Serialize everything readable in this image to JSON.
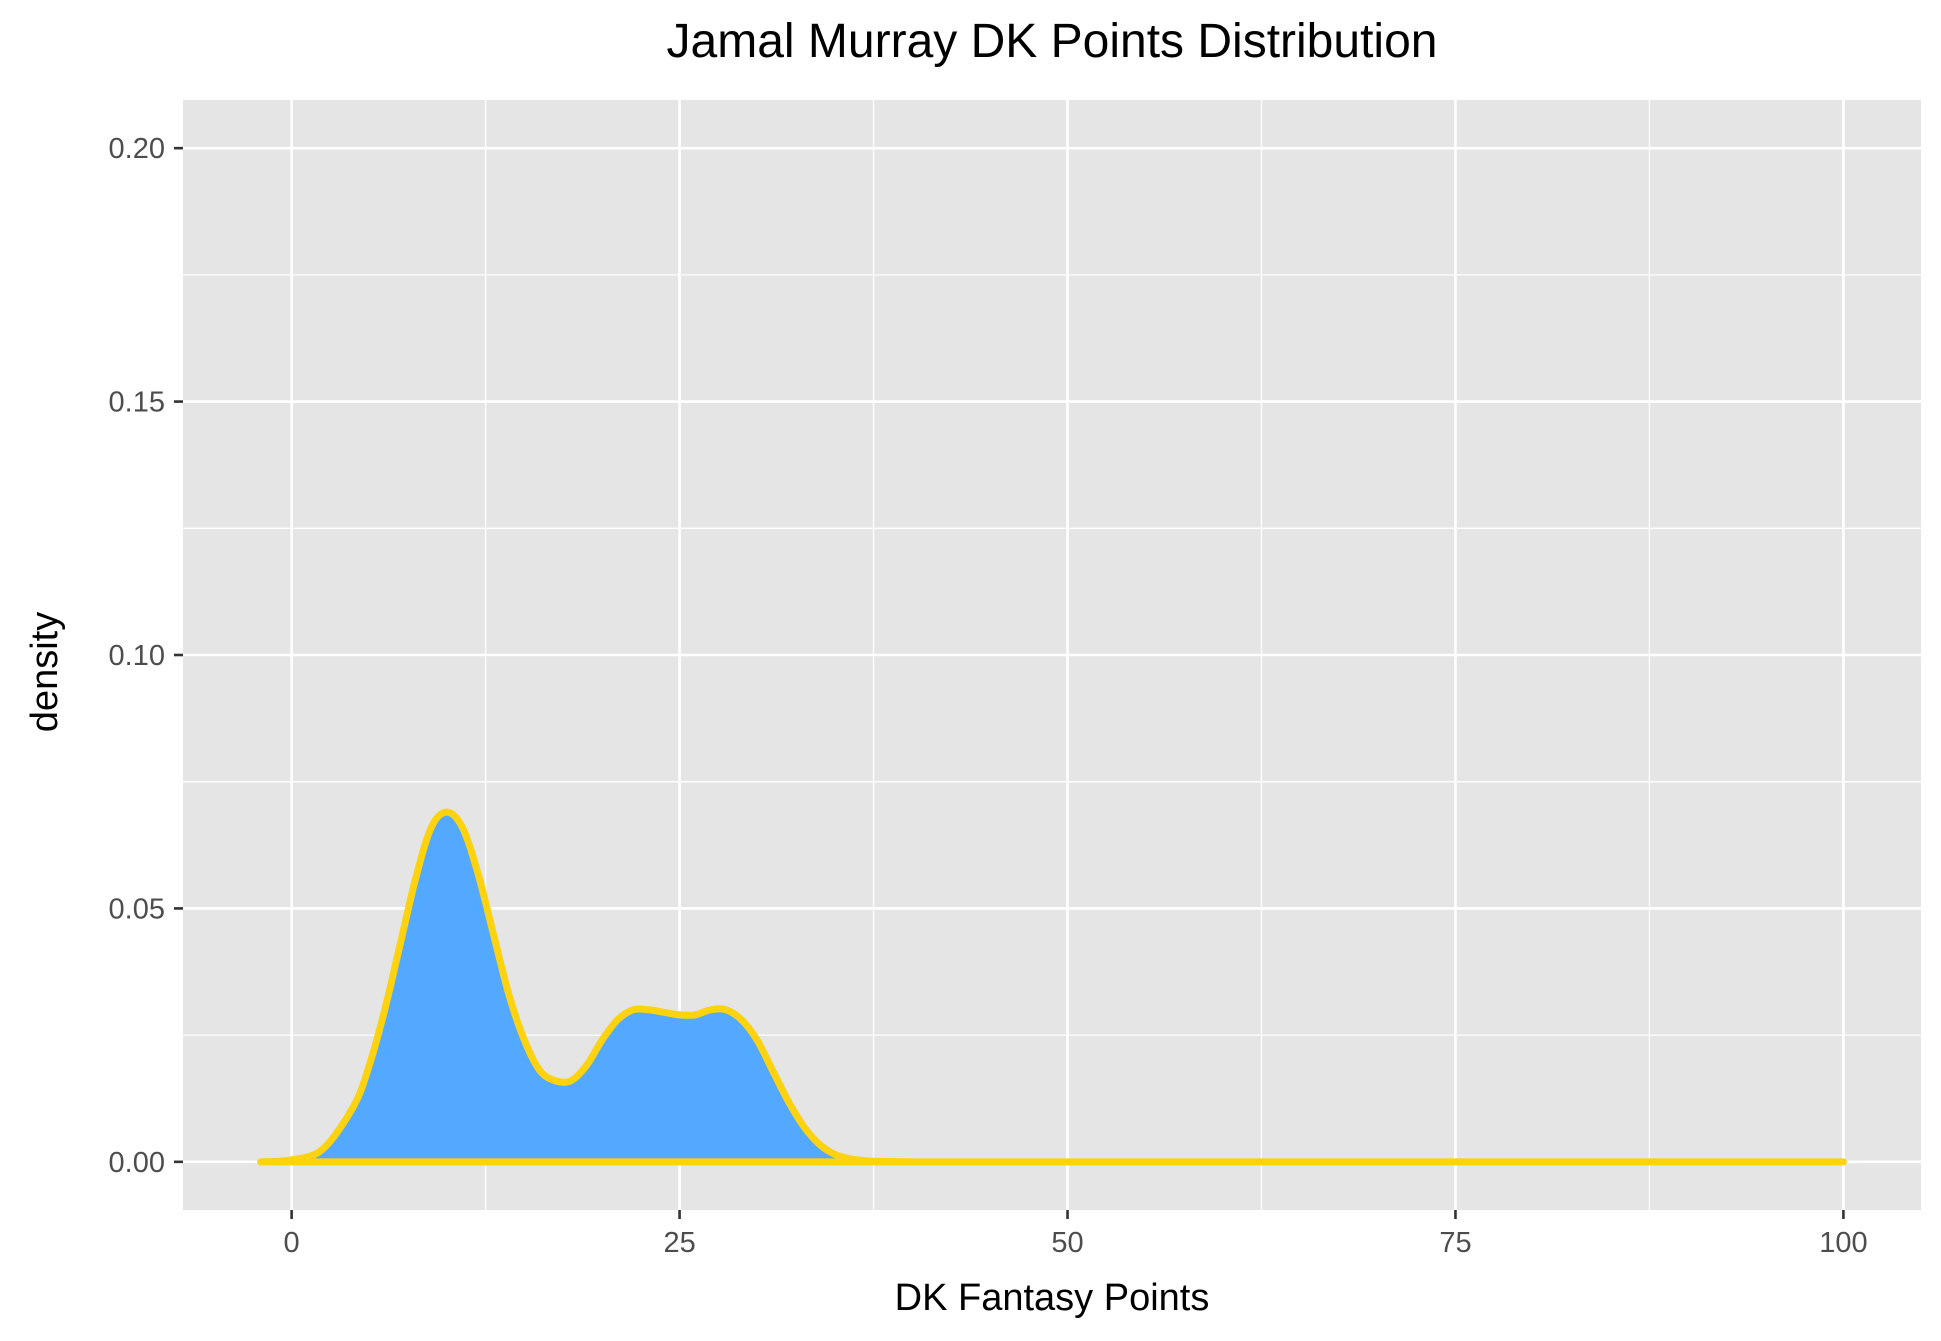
{
  "chart_data": {
    "type": "area",
    "title": "Jamal Murray DK Points Distribution",
    "xlabel": "DK Fantasy Points",
    "ylabel": "density",
    "xlim": [
      -7,
      105
    ],
    "ylim": [
      -0.0095,
      0.2095
    ],
    "x_ticks": [
      0,
      25,
      50,
      75,
      100
    ],
    "x_tick_labels": [
      "0",
      "25",
      "50",
      "75",
      "100"
    ],
    "y_ticks": [
      0.0,
      0.05,
      0.1,
      0.15,
      0.2
    ],
    "y_tick_labels": [
      "0.00",
      "0.05",
      "0.10",
      "0.15",
      "0.20"
    ],
    "grid": true,
    "legend": "none",
    "series": [
      {
        "x": [
          -2,
          0,
          2,
          4,
          5,
          6,
          7,
          8,
          9,
          10,
          11,
          12,
          13,
          14,
          15,
          16,
          17,
          18,
          19,
          20,
          21,
          22,
          23,
          24,
          25,
          26,
          27,
          28,
          29,
          30,
          31,
          32,
          33,
          34,
          35,
          36,
          37,
          38,
          40,
          45,
          50,
          60,
          70,
          80,
          90,
          100
        ],
        "y": [
          0.0,
          0.0004,
          0.0025,
          0.011,
          0.019,
          0.03,
          0.043,
          0.056,
          0.066,
          0.069,
          0.066,
          0.057,
          0.045,
          0.033,
          0.024,
          0.018,
          0.016,
          0.016,
          0.019,
          0.024,
          0.028,
          0.03,
          0.03,
          0.0295,
          0.029,
          0.029,
          0.03,
          0.03,
          0.028,
          0.024,
          0.018,
          0.012,
          0.007,
          0.0035,
          0.0015,
          0.0006,
          0.0002,
          0.0001,
          0.0,
          0.0,
          0.0,
          0.0,
          0.0,
          0.0,
          0.0,
          0.0
        ]
      }
    ],
    "colors": {
      "panel_background": "#e5e5e5",
      "grid_line": "#ffffff",
      "fill": "#53a8ff",
      "line": "#fdd20e",
      "tick_mark": "#333333"
    }
  }
}
